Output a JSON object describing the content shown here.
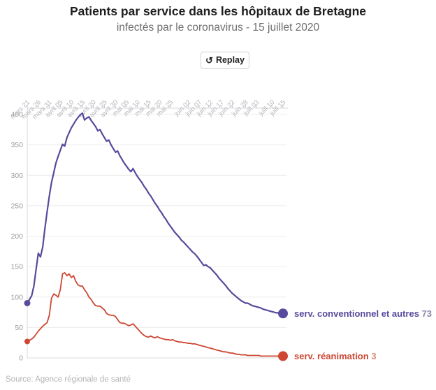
{
  "header": {
    "title": "Patients par service dans les hôpitaux de Bretagne",
    "subtitle": "infectés par le coronavirus - 15 juillet 2020"
  },
  "toolbar": {
    "replay_icon": "↺",
    "replay_label": "Replay"
  },
  "footer": {
    "source": "Source: Agence régionale de santé"
  },
  "colors": {
    "title": "#1d1d1d",
    "subtitle": "#6e6e6e",
    "grid": "#ececec",
    "axis": "#d8d8d8",
    "tick": "#c9c9c9",
    "x_label": "#b4b4bc",
    "y_label": "#9b9b9b",
    "serie1": "#584a9c",
    "serie1_value": "#8b87ad",
    "serie2": "#cd4733",
    "serie2_value": "#de8a76",
    "source": "#b5b5b5"
  },
  "chart_data": {
    "type": "line",
    "title": "Patients par service dans les hôpitaux de Bretagne",
    "subtitle": "infectés par le coronavirus - 15 juillet 2020",
    "xlabel": "",
    "ylabel": "",
    "ylim": [
      0,
      400
    ],
    "y_ticks": [
      0,
      50,
      100,
      150,
      200,
      250,
      300,
      350,
      400
    ],
    "grid": true,
    "legend_position": "end-of-line",
    "x_unit": "days since mars 21 2020",
    "x_range_days": [
      0,
      116
    ],
    "x_ticks": [
      {
        "label": "mars 21",
        "day": 0
      },
      {
        "label": "mars 26",
        "day": 5
      },
      {
        "label": "mars 31",
        "day": 10
      },
      {
        "label": "avril 05",
        "day": 15
      },
      {
        "label": "avril 10",
        "day": 20
      },
      {
        "label": "avril 15",
        "day": 25
      },
      {
        "label": "avril 20",
        "day": 30
      },
      {
        "label": "avril 25",
        "day": 35
      },
      {
        "label": "avril 30",
        "day": 40
      },
      {
        "label": "mai 05",
        "day": 45
      },
      {
        "label": "mai 10",
        "day": 50
      },
      {
        "label": "mai 15",
        "day": 55
      },
      {
        "label": "mai 20",
        "day": 60
      },
      {
        "label": "mai 25",
        "day": 65
      },
      {
        "label": "juin 02",
        "day": 73
      },
      {
        "label": "juin 07",
        "day": 78
      },
      {
        "label": "juin 12",
        "day": 83
      },
      {
        "label": "juin 17",
        "day": 88
      },
      {
        "label": "juin 22",
        "day": 93
      },
      {
        "label": "juin 28",
        "day": 99
      },
      {
        "label": "juill 03",
        "day": 104
      },
      {
        "label": "juill 10",
        "day": 111
      },
      {
        "label": "juill 15",
        "day": 116
      }
    ],
    "series": [
      {
        "name": "serv. conventionnel et autres",
        "final_value": 73,
        "start_value": 90,
        "peak_value": 402,
        "color": "#584a9c",
        "value_color": "#8b87ad",
        "points": [
          [
            0,
            90
          ],
          [
            1,
            96
          ],
          [
            2,
            102
          ],
          [
            3,
            118
          ],
          [
            4,
            145
          ],
          [
            5,
            172
          ],
          [
            6,
            166
          ],
          [
            7,
            182
          ],
          [
            8,
            212
          ],
          [
            9,
            240
          ],
          [
            10,
            266
          ],
          [
            11,
            288
          ],
          [
            12,
            304
          ],
          [
            13,
            320
          ],
          [
            14,
            331
          ],
          [
            15,
            341
          ],
          [
            16,
            351
          ],
          [
            17,
            348
          ],
          [
            18,
            362
          ],
          [
            19,
            370
          ],
          [
            20,
            378
          ],
          [
            21,
            384
          ],
          [
            22,
            390
          ],
          [
            23,
            395
          ],
          [
            24,
            399
          ],
          [
            25,
            402
          ],
          [
            26,
            391
          ],
          [
            27,
            394
          ],
          [
            28,
            396
          ],
          [
            29,
            390
          ],
          [
            30,
            385
          ],
          [
            31,
            380
          ],
          [
            32,
            373
          ],
          [
            33,
            375
          ],
          [
            34,
            368
          ],
          [
            35,
            362
          ],
          [
            36,
            356
          ],
          [
            37,
            358
          ],
          [
            38,
            350
          ],
          [
            39,
            344
          ],
          [
            40,
            338
          ],
          [
            41,
            340
          ],
          [
            42,
            332
          ],
          [
            43,
            326
          ],
          [
            44,
            320
          ],
          [
            45,
            315
          ],
          [
            46,
            310
          ],
          [
            47,
            306
          ],
          [
            48,
            311
          ],
          [
            49,
            304
          ],
          [
            50,
            298
          ],
          [
            51,
            293
          ],
          [
            52,
            288
          ],
          [
            53,
            282
          ],
          [
            54,
            277
          ],
          [
            55,
            271
          ],
          [
            56,
            266
          ],
          [
            57,
            260
          ],
          [
            58,
            254
          ],
          [
            59,
            249
          ],
          [
            60,
            243
          ],
          [
            61,
            238
          ],
          [
            62,
            232
          ],
          [
            63,
            227
          ],
          [
            64,
            221
          ],
          [
            65,
            216
          ],
          [
            66,
            211
          ],
          [
            67,
            206
          ],
          [
            68,
            202
          ],
          [
            69,
            198
          ],
          [
            70,
            193
          ],
          [
            71,
            190
          ],
          [
            72,
            186
          ],
          [
            73,
            182
          ],
          [
            74,
            178
          ],
          [
            75,
            174
          ],
          [
            76,
            171
          ],
          [
            77,
            167
          ],
          [
            78,
            162
          ],
          [
            79,
            157
          ],
          [
            80,
            152
          ],
          [
            81,
            153
          ],
          [
            82,
            150
          ],
          [
            83,
            148
          ],
          [
            84,
            144
          ],
          [
            85,
            140
          ],
          [
            86,
            136
          ],
          [
            87,
            131
          ],
          [
            88,
            127
          ],
          [
            89,
            123
          ],
          [
            90,
            119
          ],
          [
            91,
            114
          ],
          [
            92,
            110
          ],
          [
            93,
            106
          ],
          [
            94,
            103
          ],
          [
            95,
            100
          ],
          [
            96,
            97
          ],
          [
            97,
            94
          ],
          [
            98,
            92
          ],
          [
            99,
            90
          ],
          [
            100,
            90
          ],
          [
            101,
            88
          ],
          [
            102,
            86
          ],
          [
            103,
            85
          ],
          [
            104,
            84
          ],
          [
            105,
            83
          ],
          [
            106,
            82
          ],
          [
            107,
            80
          ],
          [
            108,
            79
          ],
          [
            109,
            78
          ],
          [
            110,
            77
          ],
          [
            111,
            76
          ],
          [
            112,
            75
          ],
          [
            113,
            74
          ],
          [
            114,
            74
          ],
          [
            115,
            73
          ],
          [
            116,
            73
          ]
        ]
      },
      {
        "name": "serv. réanimation",
        "final_value": 3,
        "start_value": 27,
        "peak_value": 140,
        "color": "#cd4733",
        "value_color": "#de8a76",
        "points": [
          [
            0,
            27
          ],
          [
            1,
            29
          ],
          [
            2,
            31
          ],
          [
            3,
            34
          ],
          [
            4,
            39
          ],
          [
            5,
            44
          ],
          [
            6,
            48
          ],
          [
            7,
            52
          ],
          [
            8,
            55
          ],
          [
            9,
            58
          ],
          [
            10,
            70
          ],
          [
            11,
            98
          ],
          [
            12,
            105
          ],
          [
            13,
            103
          ],
          [
            14,
            100
          ],
          [
            15,
            112
          ],
          [
            16,
            138
          ],
          [
            17,
            140
          ],
          [
            18,
            135
          ],
          [
            19,
            138
          ],
          [
            20,
            132
          ],
          [
            21,
            135
          ],
          [
            22,
            126
          ],
          [
            23,
            120
          ],
          [
            24,
            118
          ],
          [
            25,
            118
          ],
          [
            26,
            112
          ],
          [
            27,
            107
          ],
          [
            28,
            100
          ],
          [
            29,
            96
          ],
          [
            30,
            90
          ],
          [
            31,
            86
          ],
          [
            32,
            85
          ],
          [
            33,
            85
          ],
          [
            34,
            82
          ],
          [
            35,
            79
          ],
          [
            36,
            73
          ],
          [
            37,
            71
          ],
          [
            38,
            70
          ],
          [
            39,
            70
          ],
          [
            40,
            68
          ],
          [
            41,
            63
          ],
          [
            42,
            58
          ],
          [
            43,
            57
          ],
          [
            44,
            57
          ],
          [
            45,
            55
          ],
          [
            46,
            53
          ],
          [
            47,
            54
          ],
          [
            48,
            56
          ],
          [
            49,
            52
          ],
          [
            50,
            48
          ],
          [
            51,
            44
          ],
          [
            52,
            40
          ],
          [
            53,
            37
          ],
          [
            54,
            35
          ],
          [
            55,
            34
          ],
          [
            56,
            36
          ],
          [
            57,
            34
          ],
          [
            58,
            33
          ],
          [
            59,
            35
          ],
          [
            60,
            33
          ],
          [
            61,
            32
          ],
          [
            62,
            31
          ],
          [
            63,
            30
          ],
          [
            64,
            30
          ],
          [
            65,
            29
          ],
          [
            66,
            30
          ],
          [
            67,
            28
          ],
          [
            68,
            27
          ],
          [
            69,
            26
          ],
          [
            70,
            26
          ],
          [
            71,
            25
          ],
          [
            72,
            25
          ],
          [
            73,
            24
          ],
          [
            74,
            24
          ],
          [
            75,
            23
          ],
          [
            76,
            23
          ],
          [
            77,
            22
          ],
          [
            78,
            21
          ],
          [
            79,
            20
          ],
          [
            80,
            19
          ],
          [
            81,
            18
          ],
          [
            82,
            17
          ],
          [
            83,
            16
          ],
          [
            84,
            15
          ],
          [
            85,
            14
          ],
          [
            86,
            13
          ],
          [
            87,
            12
          ],
          [
            88,
            11
          ],
          [
            89,
            10
          ],
          [
            90,
            10
          ],
          [
            91,
            9
          ],
          [
            92,
            8
          ],
          [
            93,
            8
          ],
          [
            94,
            7
          ],
          [
            95,
            6
          ],
          [
            96,
            6
          ],
          [
            97,
            5
          ],
          [
            98,
            5
          ],
          [
            99,
            5
          ],
          [
            100,
            4
          ],
          [
            101,
            4
          ],
          [
            102,
            4
          ],
          [
            103,
            4
          ],
          [
            104,
            4
          ],
          [
            105,
            4
          ],
          [
            106,
            3
          ],
          [
            107,
            3
          ],
          [
            108,
            3
          ],
          [
            109,
            3
          ],
          [
            110,
            3
          ],
          [
            111,
            3
          ],
          [
            112,
            3
          ],
          [
            113,
            3
          ],
          [
            114,
            3
          ],
          [
            115,
            3
          ],
          [
            116,
            3
          ]
        ]
      }
    ]
  }
}
